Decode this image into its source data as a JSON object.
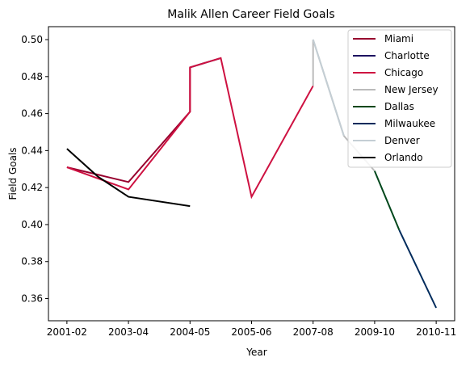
{
  "chart_data": {
    "type": "line",
    "title": "Malik Allen Career Field Goals",
    "xlabel": "Year",
    "ylabel": "Field Goals",
    "x_tick_labels": [
      "2001-02",
      "2003-04",
      "2004-05",
      "2005-06",
      "2007-08",
      "2009-10",
      "2010-11"
    ],
    "y_tick_labels": [
      "0.36",
      "0.38",
      "0.40",
      "0.42",
      "0.44",
      "0.46",
      "0.48",
      "0.50"
    ],
    "y_ticks": [
      0.36,
      0.38,
      0.4,
      0.42,
      0.44,
      0.46,
      0.48,
      0.5
    ],
    "xlim": [
      -0.3,
      6.3
    ],
    "ylim": [
      0.348,
      0.507
    ],
    "grid": false,
    "legend_position": "top-right",
    "series": [
      {
        "name": "Miami",
        "color": "#98002E",
        "points": [
          [
            0,
            0.431
          ],
          [
            1,
            0.423
          ],
          [
            2,
            0.461
          ],
          [
            2,
            0.485
          ]
        ]
      },
      {
        "name": "Charlotte",
        "color": "#1D1160",
        "points": [
          [
            2,
            0.485
          ],
          [
            2.5,
            0.49
          ]
        ]
      },
      {
        "name": "Chicago",
        "color": "#CE1141",
        "points": [
          [
            0,
            0.431
          ],
          [
            1.0,
            0.419
          ],
          [
            2,
            0.461
          ],
          [
            2,
            0.485
          ],
          [
            2.5,
            0.49
          ],
          [
            3,
            0.415
          ],
          [
            4,
            0.475
          ]
        ]
      },
      {
        "name": "New Jersey",
        "color": "#BBBBBB",
        "points": [
          [
            4,
            0.475
          ],
          [
            4,
            0.5
          ],
          [
            4.5,
            0.448
          ],
          [
            5,
            0.429
          ]
        ]
      },
      {
        "name": "Dallas",
        "color": "#00471B",
        "points": [
          [
            5,
            0.429
          ],
          [
            5.4,
            0.397
          ]
        ]
      },
      {
        "name": "Milwaukee",
        "color": "#002B5C",
        "points": [
          [
            5.4,
            0.397
          ],
          [
            6,
            0.355
          ]
        ]
      },
      {
        "name": "Denver",
        "color": "#C4CED4",
        "points": [
          [
            4,
            0.5
          ],
          [
            4.5,
            0.448
          ]
        ]
      },
      {
        "name": "Orlando",
        "color": "#000000",
        "points": [
          [
            0,
            0.441
          ],
          [
            0.5,
            0.426
          ],
          [
            1,
            0.415
          ],
          [
            2,
            0.41
          ]
        ]
      }
    ]
  }
}
